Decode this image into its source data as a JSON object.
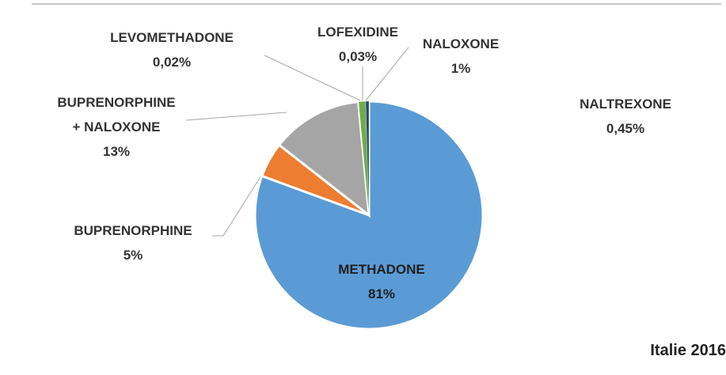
{
  "chart_data": {
    "type": "pie",
    "annotation": "Italie 2016",
    "categories": [
      "METHADONE",
      "BUPRENORPHINE",
      "BUPRENORPHINE + NALOXONE",
      "LEVOMETHADONE",
      "LOFEXIDINE",
      "NALOXONE",
      "NALTREXONE"
    ],
    "values": [
      81,
      5,
      13,
      0.02,
      0.03,
      1,
      0.45
    ],
    "value_labels": [
      "81%",
      "5%",
      "13%",
      "0,02%",
      "0,03%",
      "1%",
      "0,45%"
    ],
    "colors": [
      "#5b9bd5",
      "#ed7d31",
      "#a5a5a5",
      "#ffc000",
      "#4472c4",
      "#70ad47",
      "#264478"
    ]
  }
}
